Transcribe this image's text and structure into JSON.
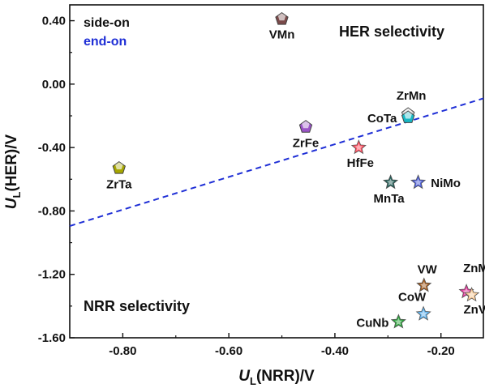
{
  "chart_data": {
    "type": "scatter",
    "xlabel_prefix": "U",
    "xlabel_sub": "L",
    "xlabel_suffix": "(NRR)/V",
    "ylabel_prefix": "U",
    "ylabel_sub": "L",
    "ylabel_suffix": "(HER)/V",
    "xlim": [
      -0.9,
      -0.12
    ],
    "ylim": [
      -1.6,
      0.5
    ],
    "x_ticks": [
      -0.8,
      -0.6,
      -0.4,
      -0.2
    ],
    "x_tick_labels": [
      "-0.80",
      "-0.60",
      "-0.40",
      "-0.20"
    ],
    "y_ticks": [
      0.4,
      0.0,
      -0.4,
      -0.8,
      -1.2,
      -1.6
    ],
    "y_tick_labels": [
      "0.40",
      "0.00",
      "-0.40",
      "-0.80",
      "-1.20",
      "-1.60"
    ],
    "grid": false,
    "legend": [
      {
        "text": "side-on",
        "color": "#111111"
      },
      {
        "text": "end-on",
        "color": "#1f2fd6"
      }
    ],
    "region_labels": {
      "her": "HER selectivity",
      "nrr": "NRR selectivity"
    },
    "boundary_line": {
      "x": [
        -0.9,
        -0.12
      ],
      "y": [
        -0.895,
        -0.09
      ],
      "color": "#1f2fd6",
      "style": "dashed"
    },
    "points": [
      {
        "label": "VMn",
        "x": -0.5,
        "y": 0.41,
        "marker": "pentagon",
        "color": "#7a4a4a",
        "label_dx": 0,
        "label_dy": 24,
        "anchor": "middle",
        "label_color": "#111111"
      },
      {
        "label": "ZrMn",
        "x": -0.262,
        "y": -0.19,
        "marker": "pentagon",
        "color": "#d9d9d9",
        "label_dx": 4,
        "label_dy": -18,
        "anchor": "middle",
        "label_color": "#111111"
      },
      {
        "label": "CoTa",
        "x": -0.262,
        "y": -0.21,
        "marker": "pentagon",
        "color": "#17b7c4",
        "label_dx": -32,
        "label_dy": 6,
        "anchor": "middle",
        "label_color": "#111111"
      },
      {
        "label": "ZrFe",
        "x": -0.455,
        "y": -0.27,
        "marker": "pentagon",
        "color": "#9b55c7",
        "label_dx": 0,
        "label_dy": 25,
        "anchor": "middle",
        "label_color": "#111111"
      },
      {
        "label": "ZrTa",
        "x": -0.807,
        "y": -0.53,
        "marker": "pentagon",
        "color": "#a6a600",
        "label_dx": 0,
        "label_dy": 25,
        "anchor": "middle",
        "label_color": "#111111"
      },
      {
        "label": "HfFe",
        "x": -0.355,
        "y": -0.4,
        "marker": "star",
        "color": "#ff4d5e",
        "label_dx": 2,
        "label_dy": 24,
        "anchor": "middle",
        "label_color": "#111111"
      },
      {
        "label": "MnTa",
        "x": -0.295,
        "y": -0.62,
        "marker": "star",
        "color": "#1f5c55",
        "label_dx": -2,
        "label_dy": 25,
        "anchor": "middle",
        "label_color": "#111111"
      },
      {
        "label": "NiMo",
        "x": -0.243,
        "y": -0.62,
        "marker": "star",
        "color": "#4a5bd6",
        "label_dx": 34,
        "label_dy": 6,
        "anchor": "middle",
        "label_color": "#111111"
      },
      {
        "label": "VW",
        "x": -0.232,
        "y": -1.27,
        "marker": "star",
        "color": "#a35c1f",
        "label_dx": 4,
        "label_dy": -15,
        "anchor": "middle",
        "label_color": "#1f2fd6"
      },
      {
        "label": "ZnMo",
        "x": -0.152,
        "y": -1.31,
        "marker": "star",
        "color": "#e0399a",
        "label_dx": 16,
        "label_dy": -24,
        "anchor": "middle",
        "label_color": "#111111"
      },
      {
        "label": "ZnV",
        "x": -0.142,
        "y": -1.33,
        "marker": "star",
        "color": "#f5c896",
        "label_dx": 4,
        "label_dy": 23,
        "anchor": "middle",
        "label_color": "#111111"
      },
      {
        "label": "CoW",
        "x": -0.233,
        "y": -1.45,
        "marker": "star",
        "color": "#5fb0ea",
        "label_dx": -14,
        "label_dy": -16,
        "anchor": "middle",
        "label_color": "#111111"
      },
      {
        "label": "CuNb",
        "x": -0.28,
        "y": -1.5,
        "marker": "star",
        "color": "#2ba23b",
        "label_dx": -32,
        "label_dy": 6,
        "anchor": "middle",
        "label_color": "#111111"
      }
    ]
  }
}
